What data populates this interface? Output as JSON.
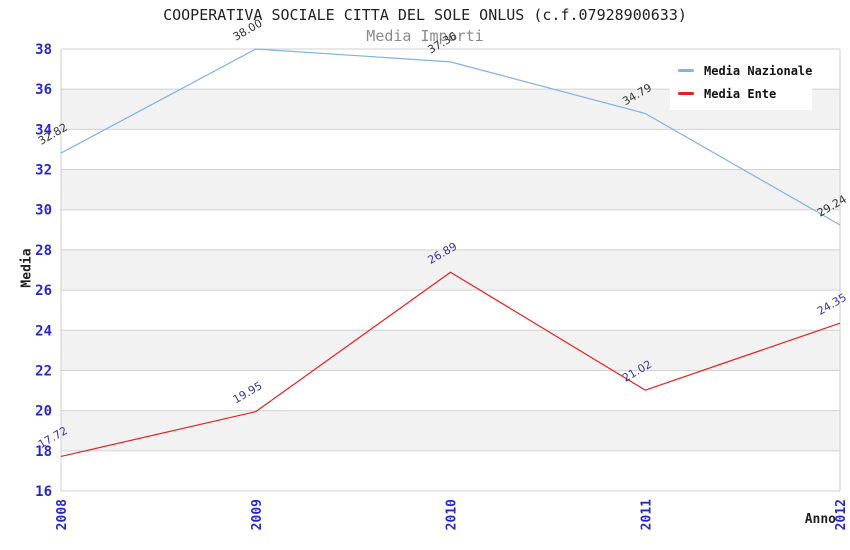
{
  "page": {
    "background": "#FFFFFF"
  },
  "chart_data": {
    "type": "line",
    "title": "COOPERATIVA SOCIALE CITTA DEL SOLE ONLUS (c.f.07928900633)",
    "subtitle": "Media Importi",
    "xlabel": "Anno",
    "ylabel": "Media",
    "categories": [
      "2008",
      "2009",
      "2010",
      "2011",
      "2012"
    ],
    "series": [
      {
        "name": "Media Nazionale",
        "color": "#7FB2E5",
        "point_label_color": "#333333",
        "values": [
          32.82,
          38.0,
          37.36,
          34.79,
          29.24
        ]
      },
      {
        "name": "Media Ente",
        "color": "#E62020",
        "point_label_color": "#3434A8",
        "values": [
          17.72,
          19.95,
          26.89,
          21.02,
          24.35
        ]
      }
    ],
    "ylim": [
      16,
      38
    ],
    "ytick_step": 2,
    "yticks": [
      38,
      36,
      34,
      32,
      30,
      28,
      26,
      24,
      22,
      20,
      18,
      16
    ],
    "grid": true,
    "legend_position": "top-right",
    "point_labels_decimals": 2,
    "style": {
      "tick_color": "#2727CE",
      "grid_color": "#D2D2D2",
      "band_alt_color": "#F2F2F2",
      "plot_border_color": "#CDCDCD",
      "title_color": "#222222",
      "subtitle_color": "#8A8A8A",
      "axis_title_color": "#222222",
      "legend_bg": "#FFFFFF",
      "legend_text_color": "#111111"
    }
  }
}
